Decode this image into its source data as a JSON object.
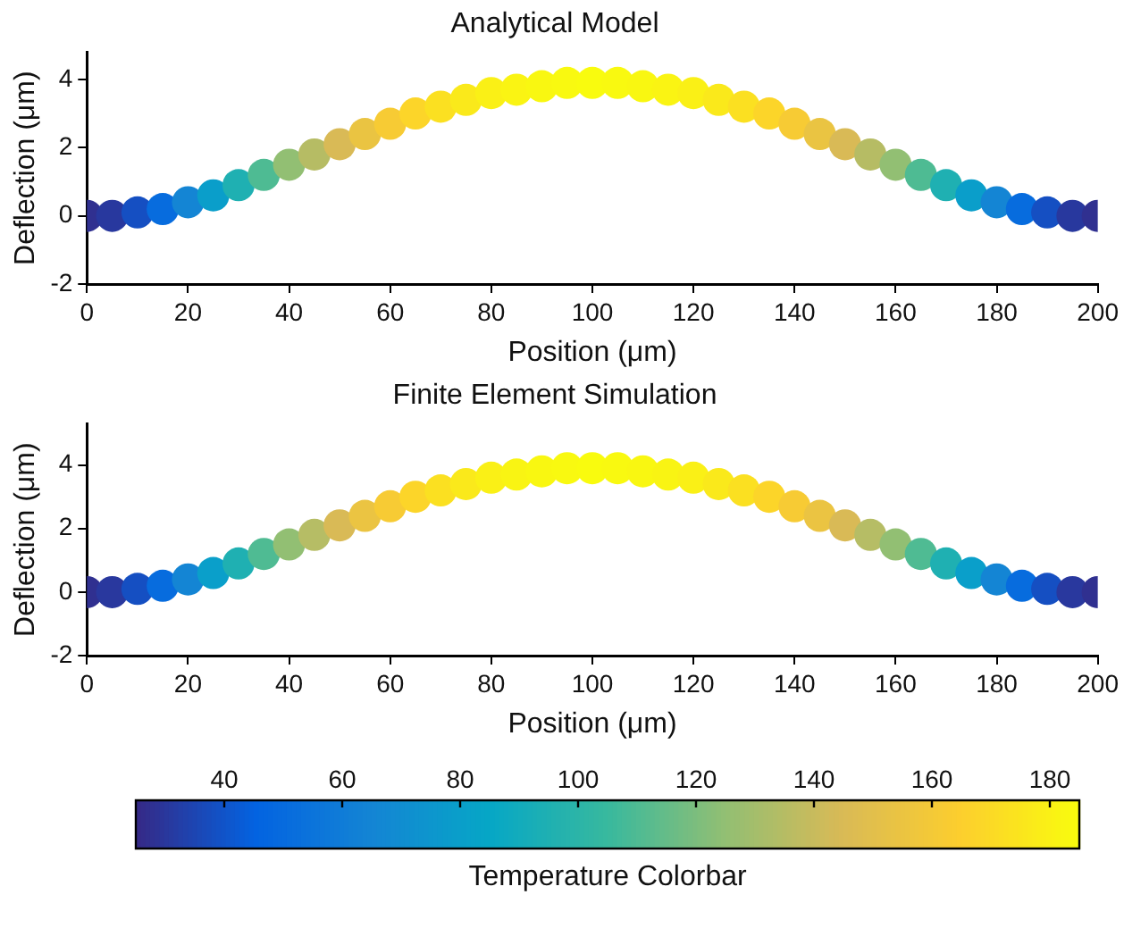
{
  "chart_data": [
    {
      "type": "scatter",
      "title": "Analytical Model",
      "xlabel": "Position (μm)",
      "ylabel": "Deflection (μm)",
      "xlim": [
        0,
        200
      ],
      "xticks": [
        0,
        20,
        40,
        60,
        80,
        100,
        120,
        140,
        160,
        180,
        200
      ],
      "ylim": [
        -2,
        4.8
      ],
      "yticks": [
        -2,
        0,
        2,
        4
      ],
      "marker": "circle",
      "x": [
        0,
        5,
        10,
        15,
        20,
        25,
        30,
        35,
        40,
        45,
        50,
        55,
        60,
        65,
        70,
        75,
        80,
        85,
        90,
        95,
        100,
        105,
        110,
        115,
        120,
        125,
        130,
        135,
        140,
        145,
        150,
        155,
        160,
        165,
        170,
        175,
        180,
        185,
        190,
        195,
        200
      ],
      "values": [
        0,
        0,
        0.1,
        0.2,
        0.4,
        0.6,
        0.9,
        1.2,
        1.5,
        1.8,
        2.1,
        2.4,
        2.7,
        3.0,
        3.2,
        3.4,
        3.6,
        3.7,
        3.8,
        3.9,
        3.9,
        3.9,
        3.8,
        3.7,
        3.6,
        3.4,
        3.2,
        3.0,
        2.7,
        2.4,
        2.1,
        1.8,
        1.5,
        1.2,
        0.9,
        0.6,
        0.4,
        0.2,
        0.1,
        0,
        0
      ],
      "colors": [
        "#303090",
        "#28389e",
        "#154fc2",
        "#076cde",
        "#1485d4",
        "#0a9eca",
        "#1fb0b2",
        "#4ebb93",
        "#92bf73",
        "#b6bc64",
        "#d9ba56",
        "#eac442",
        "#f7cb34",
        "#fcd529",
        "#fbe021",
        "#fae91b",
        "#faf016",
        "#faf413",
        "#f9f711",
        "#f9f910",
        "#f9fb0e",
        "#f9f910",
        "#f9f711",
        "#faf413",
        "#faf016",
        "#fae91b",
        "#fbe021",
        "#fcd529",
        "#f7cb34",
        "#eac442",
        "#d9ba56",
        "#b6bc64",
        "#92bf73",
        "#4ebb93",
        "#1fb0b2",
        "#0a9eca",
        "#1485d4",
        "#076cde",
        "#154fc2",
        "#28389e",
        "#303090"
      ]
    },
    {
      "type": "scatter",
      "title": "Finite Element Simulation",
      "xlabel": "Position (μm)",
      "ylabel": "Deflection (μm)",
      "clabel": "Temperature Colorbar",
      "xlim": [
        0,
        200
      ],
      "xticks": [
        0,
        20,
        40,
        60,
        80,
        100,
        120,
        140,
        160,
        180,
        200
      ],
      "ylim": [
        -2,
        5.3
      ],
      "yticks": [
        -2,
        0,
        2,
        4
      ],
      "marker": "circle",
      "clim": [
        25,
        185
      ],
      "cticks": [
        40,
        60,
        80,
        100,
        120,
        140,
        160,
        180
      ],
      "x": [
        0,
        5,
        10,
        15,
        20,
        25,
        30,
        35,
        40,
        45,
        50,
        55,
        60,
        65,
        70,
        75,
        80,
        85,
        90,
        95,
        100,
        105,
        110,
        115,
        120,
        125,
        130,
        135,
        140,
        145,
        150,
        155,
        160,
        165,
        170,
        175,
        180,
        185,
        190,
        195,
        200
      ],
      "values": [
        0,
        0,
        0.1,
        0.2,
        0.4,
        0.6,
        0.9,
        1.2,
        1.5,
        1.8,
        2.1,
        2.4,
        2.7,
        3.0,
        3.2,
        3.4,
        3.6,
        3.7,
        3.8,
        3.9,
        3.9,
        3.9,
        3.8,
        3.7,
        3.6,
        3.4,
        3.2,
        3.0,
        2.7,
        2.4,
        2.1,
        1.8,
        1.5,
        1.2,
        0.9,
        0.6,
        0.4,
        0.2,
        0.1,
        0,
        0
      ],
      "cvalues": [
        27,
        30,
        38,
        50,
        65,
        80,
        95,
        110,
        125,
        135,
        145,
        155,
        162,
        168,
        173,
        177,
        180,
        182,
        183,
        184,
        185,
        184,
        183,
        182,
        180,
        177,
        173,
        168,
        162,
        155,
        145,
        135,
        125,
        110,
        95,
        80,
        65,
        50,
        38,
        30,
        27
      ]
    }
  ]
}
